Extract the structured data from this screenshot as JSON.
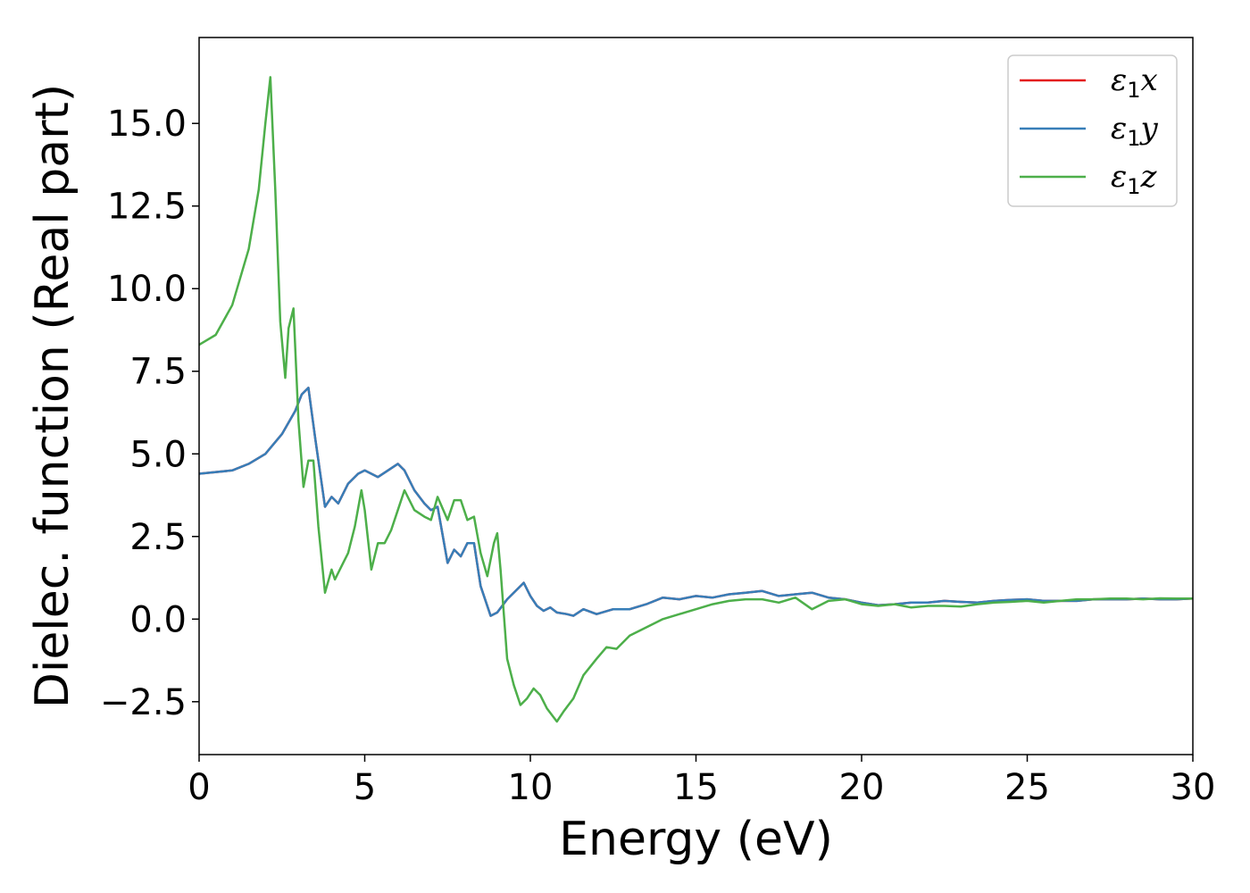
{
  "chart_data": {
    "type": "line",
    "title": "",
    "xlabel": "Energy (eV)",
    "ylabel": "Dielec. function (Real part)",
    "xlim": [
      0,
      30
    ],
    "ylim": [
      -4.1,
      17.6
    ],
    "xticks": [
      0,
      5,
      10,
      15,
      20,
      25,
      30
    ],
    "xtick_labels": [
      "0",
      "5",
      "10",
      "15",
      "20",
      "25",
      "30"
    ],
    "yticks": [
      -2.5,
      0.0,
      2.5,
      5.0,
      7.5,
      10.0,
      12.5,
      15.0
    ],
    "ytick_labels": [
      "−2.5",
      "0.0",
      "2.5",
      "5.0",
      "7.5",
      "10.0",
      "12.5",
      "15.0"
    ],
    "grid": false,
    "legend_position": "top-right",
    "series": [
      {
        "name": "ε",
        "sub": "1",
        "suffix": "x",
        "color": "#e41a1c",
        "x": [
          0,
          1,
          1.5,
          2,
          2.5,
          2.9,
          3.1,
          3.3,
          3.5,
          3.8,
          4.0,
          4.2,
          4.5,
          4.8,
          5.0,
          5.2,
          5.4,
          5.7,
          6.0,
          6.2,
          6.5,
          6.8,
          7.0,
          7.2,
          7.5,
          7.7,
          7.9,
          8.1,
          8.3,
          8.5,
          8.8,
          9.0,
          9.3,
          9.6,
          9.8,
          10.0,
          10.2,
          10.4,
          10.6,
          10.8,
          11.1,
          11.3,
          11.6,
          12.0,
          12.5,
          13.0,
          13.5,
          14.0,
          14.5,
          15.0,
          15.5,
          16.0,
          16.5,
          17.0,
          17.5,
          18.0,
          18.5,
          19.0,
          19.5,
          20.0,
          20.5,
          21.0,
          21.5,
          22.0,
          22.5,
          23.0,
          23.5,
          24.0,
          24.5,
          25.0,
          25.5,
          26.0,
          26.5,
          27.0,
          27.5,
          28.0,
          28.5,
          29.0,
          29.5,
          30.0
        ],
        "values": [
          4.4,
          4.5,
          4.7,
          5.0,
          5.6,
          6.3,
          6.8,
          7.0,
          5.5,
          3.4,
          3.7,
          3.5,
          4.1,
          4.4,
          4.5,
          4.4,
          4.3,
          4.5,
          4.7,
          4.5,
          3.9,
          3.5,
          3.3,
          3.4,
          1.7,
          2.1,
          1.9,
          2.3,
          2.3,
          1.0,
          0.1,
          0.2,
          0.6,
          0.9,
          1.1,
          0.7,
          0.4,
          0.25,
          0.35,
          0.2,
          0.15,
          0.1,
          0.3,
          0.15,
          0.3,
          0.3,
          0.45,
          0.65,
          0.6,
          0.7,
          0.65,
          0.75,
          0.8,
          0.85,
          0.7,
          0.75,
          0.8,
          0.65,
          0.6,
          0.5,
          0.42,
          0.45,
          0.5,
          0.5,
          0.55,
          0.52,
          0.5,
          0.55,
          0.58,
          0.6,
          0.55,
          0.55,
          0.55,
          0.6,
          0.6,
          0.6,
          0.62,
          0.6,
          0.6,
          0.62
        ]
      },
      {
        "name": "ε",
        "sub": "1",
        "suffix": "y",
        "color": "#377eb8",
        "x": [
          0,
          1,
          1.5,
          2,
          2.5,
          2.9,
          3.1,
          3.3,
          3.5,
          3.8,
          4.0,
          4.2,
          4.5,
          4.8,
          5.0,
          5.2,
          5.4,
          5.7,
          6.0,
          6.2,
          6.5,
          6.8,
          7.0,
          7.2,
          7.5,
          7.7,
          7.9,
          8.1,
          8.3,
          8.5,
          8.8,
          9.0,
          9.3,
          9.6,
          9.8,
          10.0,
          10.2,
          10.4,
          10.6,
          10.8,
          11.1,
          11.3,
          11.6,
          12.0,
          12.5,
          13.0,
          13.5,
          14.0,
          14.5,
          15.0,
          15.5,
          16.0,
          16.5,
          17.0,
          17.5,
          18.0,
          18.5,
          19.0,
          19.5,
          20.0,
          20.5,
          21.0,
          21.5,
          22.0,
          22.5,
          23.0,
          23.5,
          24.0,
          24.5,
          25.0,
          25.5,
          26.0,
          26.5,
          27.0,
          27.5,
          28.0,
          28.5,
          29.0,
          29.5,
          30.0
        ],
        "values": [
          4.4,
          4.5,
          4.7,
          5.0,
          5.6,
          6.3,
          6.8,
          7.0,
          5.5,
          3.4,
          3.7,
          3.5,
          4.1,
          4.4,
          4.5,
          4.4,
          4.3,
          4.5,
          4.7,
          4.5,
          3.9,
          3.5,
          3.3,
          3.4,
          1.7,
          2.1,
          1.9,
          2.3,
          2.3,
          1.0,
          0.1,
          0.2,
          0.6,
          0.9,
          1.1,
          0.7,
          0.4,
          0.25,
          0.35,
          0.2,
          0.15,
          0.1,
          0.3,
          0.15,
          0.3,
          0.3,
          0.45,
          0.65,
          0.6,
          0.7,
          0.65,
          0.75,
          0.8,
          0.85,
          0.7,
          0.75,
          0.8,
          0.65,
          0.6,
          0.5,
          0.42,
          0.45,
          0.5,
          0.5,
          0.55,
          0.52,
          0.5,
          0.55,
          0.58,
          0.6,
          0.55,
          0.55,
          0.55,
          0.6,
          0.6,
          0.6,
          0.62,
          0.6,
          0.6,
          0.62
        ]
      },
      {
        "name": "ε",
        "sub": "1",
        "suffix": "z",
        "color": "#4daf4a",
        "x": [
          0,
          0.5,
          1.0,
          1.5,
          1.8,
          2.0,
          2.15,
          2.3,
          2.45,
          2.6,
          2.7,
          2.85,
          3.0,
          3.15,
          3.3,
          3.45,
          3.6,
          3.8,
          4.0,
          4.1,
          4.3,
          4.5,
          4.7,
          4.9,
          5.0,
          5.2,
          5.4,
          5.6,
          5.8,
          6.0,
          6.2,
          6.5,
          6.8,
          7.0,
          7.2,
          7.5,
          7.7,
          7.9,
          8.1,
          8.3,
          8.5,
          8.7,
          8.9,
          9.0,
          9.1,
          9.3,
          9.5,
          9.7,
          9.9,
          10.1,
          10.3,
          10.5,
          10.8,
          11.0,
          11.3,
          11.6,
          12.0,
          12.3,
          12.6,
          13.0,
          13.5,
          14.0,
          14.5,
          15.0,
          15.5,
          16.0,
          16.5,
          17.0,
          17.5,
          18.0,
          18.5,
          19.0,
          19.5,
          20.0,
          20.5,
          21.0,
          21.5,
          22.0,
          22.5,
          23.0,
          23.5,
          24.0,
          24.5,
          25.0,
          25.5,
          26.0,
          26.5,
          27.0,
          27.5,
          28.0,
          28.5,
          29.0,
          29.5,
          30.0
        ],
        "values": [
          8.3,
          8.6,
          9.5,
          11.2,
          13.0,
          15.0,
          16.4,
          13.0,
          9.0,
          7.3,
          8.8,
          9.4,
          6.0,
          4.0,
          4.8,
          4.8,
          2.8,
          0.8,
          1.5,
          1.2,
          1.6,
          2.0,
          2.8,
          3.9,
          3.3,
          1.5,
          2.3,
          2.3,
          2.7,
          3.3,
          3.9,
          3.3,
          3.1,
          3.0,
          3.7,
          3.0,
          3.6,
          3.6,
          3.0,
          3.1,
          2.0,
          1.3,
          2.3,
          2.6,
          1.5,
          -1.2,
          -2.0,
          -2.6,
          -2.4,
          -2.1,
          -2.3,
          -2.7,
          -3.1,
          -2.8,
          -2.4,
          -1.7,
          -1.2,
          -0.85,
          -0.9,
          -0.5,
          -0.25,
          0.0,
          0.15,
          0.3,
          0.45,
          0.55,
          0.6,
          0.6,
          0.5,
          0.65,
          0.3,
          0.55,
          0.6,
          0.45,
          0.4,
          0.45,
          0.35,
          0.4,
          0.4,
          0.38,
          0.45,
          0.5,
          0.52,
          0.55,
          0.5,
          0.55,
          0.6,
          0.6,
          0.62,
          0.62,
          0.6,
          0.63,
          0.62,
          0.62
        ]
      }
    ]
  }
}
